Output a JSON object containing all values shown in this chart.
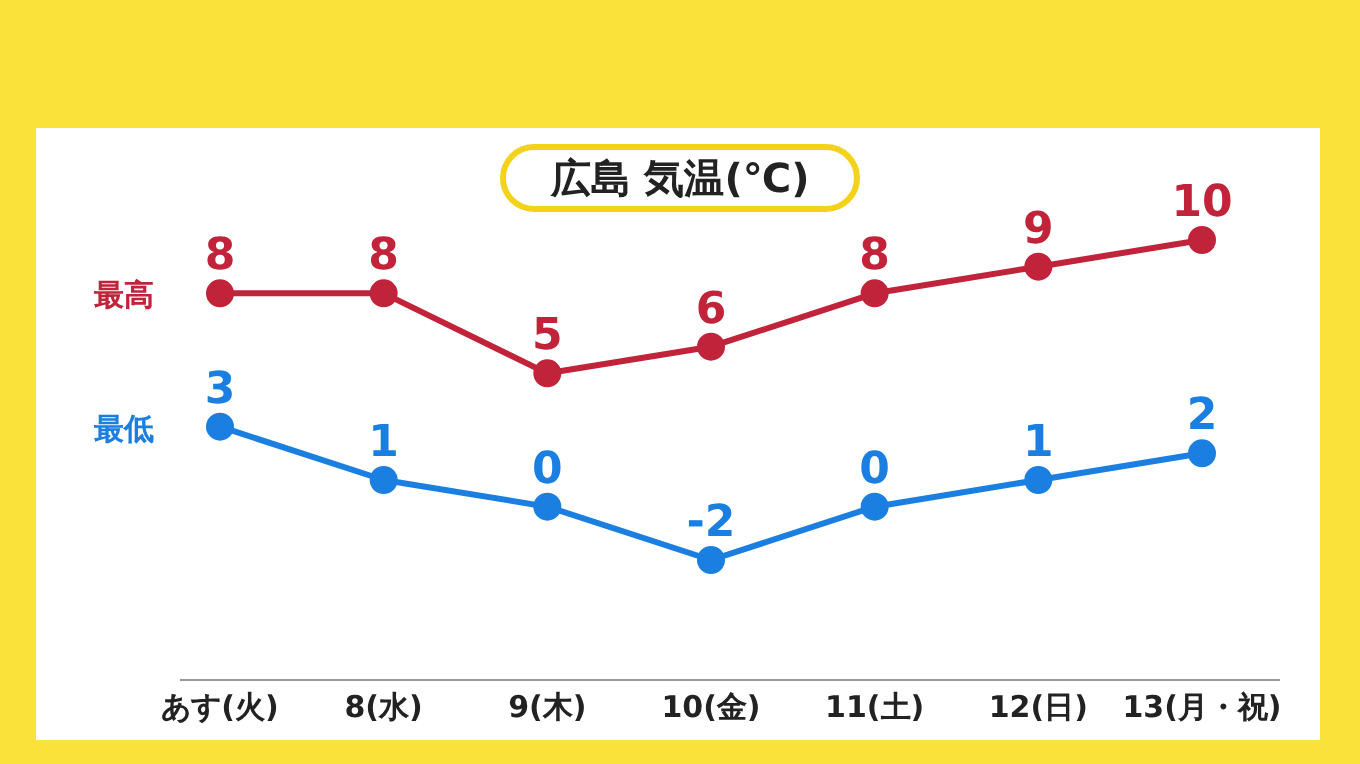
{
  "chart_data": {
    "type": "line",
    "title": "広島 気温(℃)",
    "categories": [
      "あす(火)",
      "8(水)",
      "9(木)",
      "10(金)",
      "11(土)",
      "12(日)",
      "13(月・祝)"
    ],
    "series": [
      {
        "name": "最高",
        "color": "#c0233a",
        "values": [
          8,
          8,
          5,
          6,
          8,
          9,
          10
        ]
      },
      {
        "name": "最低",
        "color": "#1a7fe0",
        "values": [
          3,
          1,
          0,
          -2,
          0,
          1,
          2
        ]
      }
    ],
    "data_labels": true,
    "marker": "circle",
    "line_style": "solid",
    "tick_labels": "x"
  }
}
